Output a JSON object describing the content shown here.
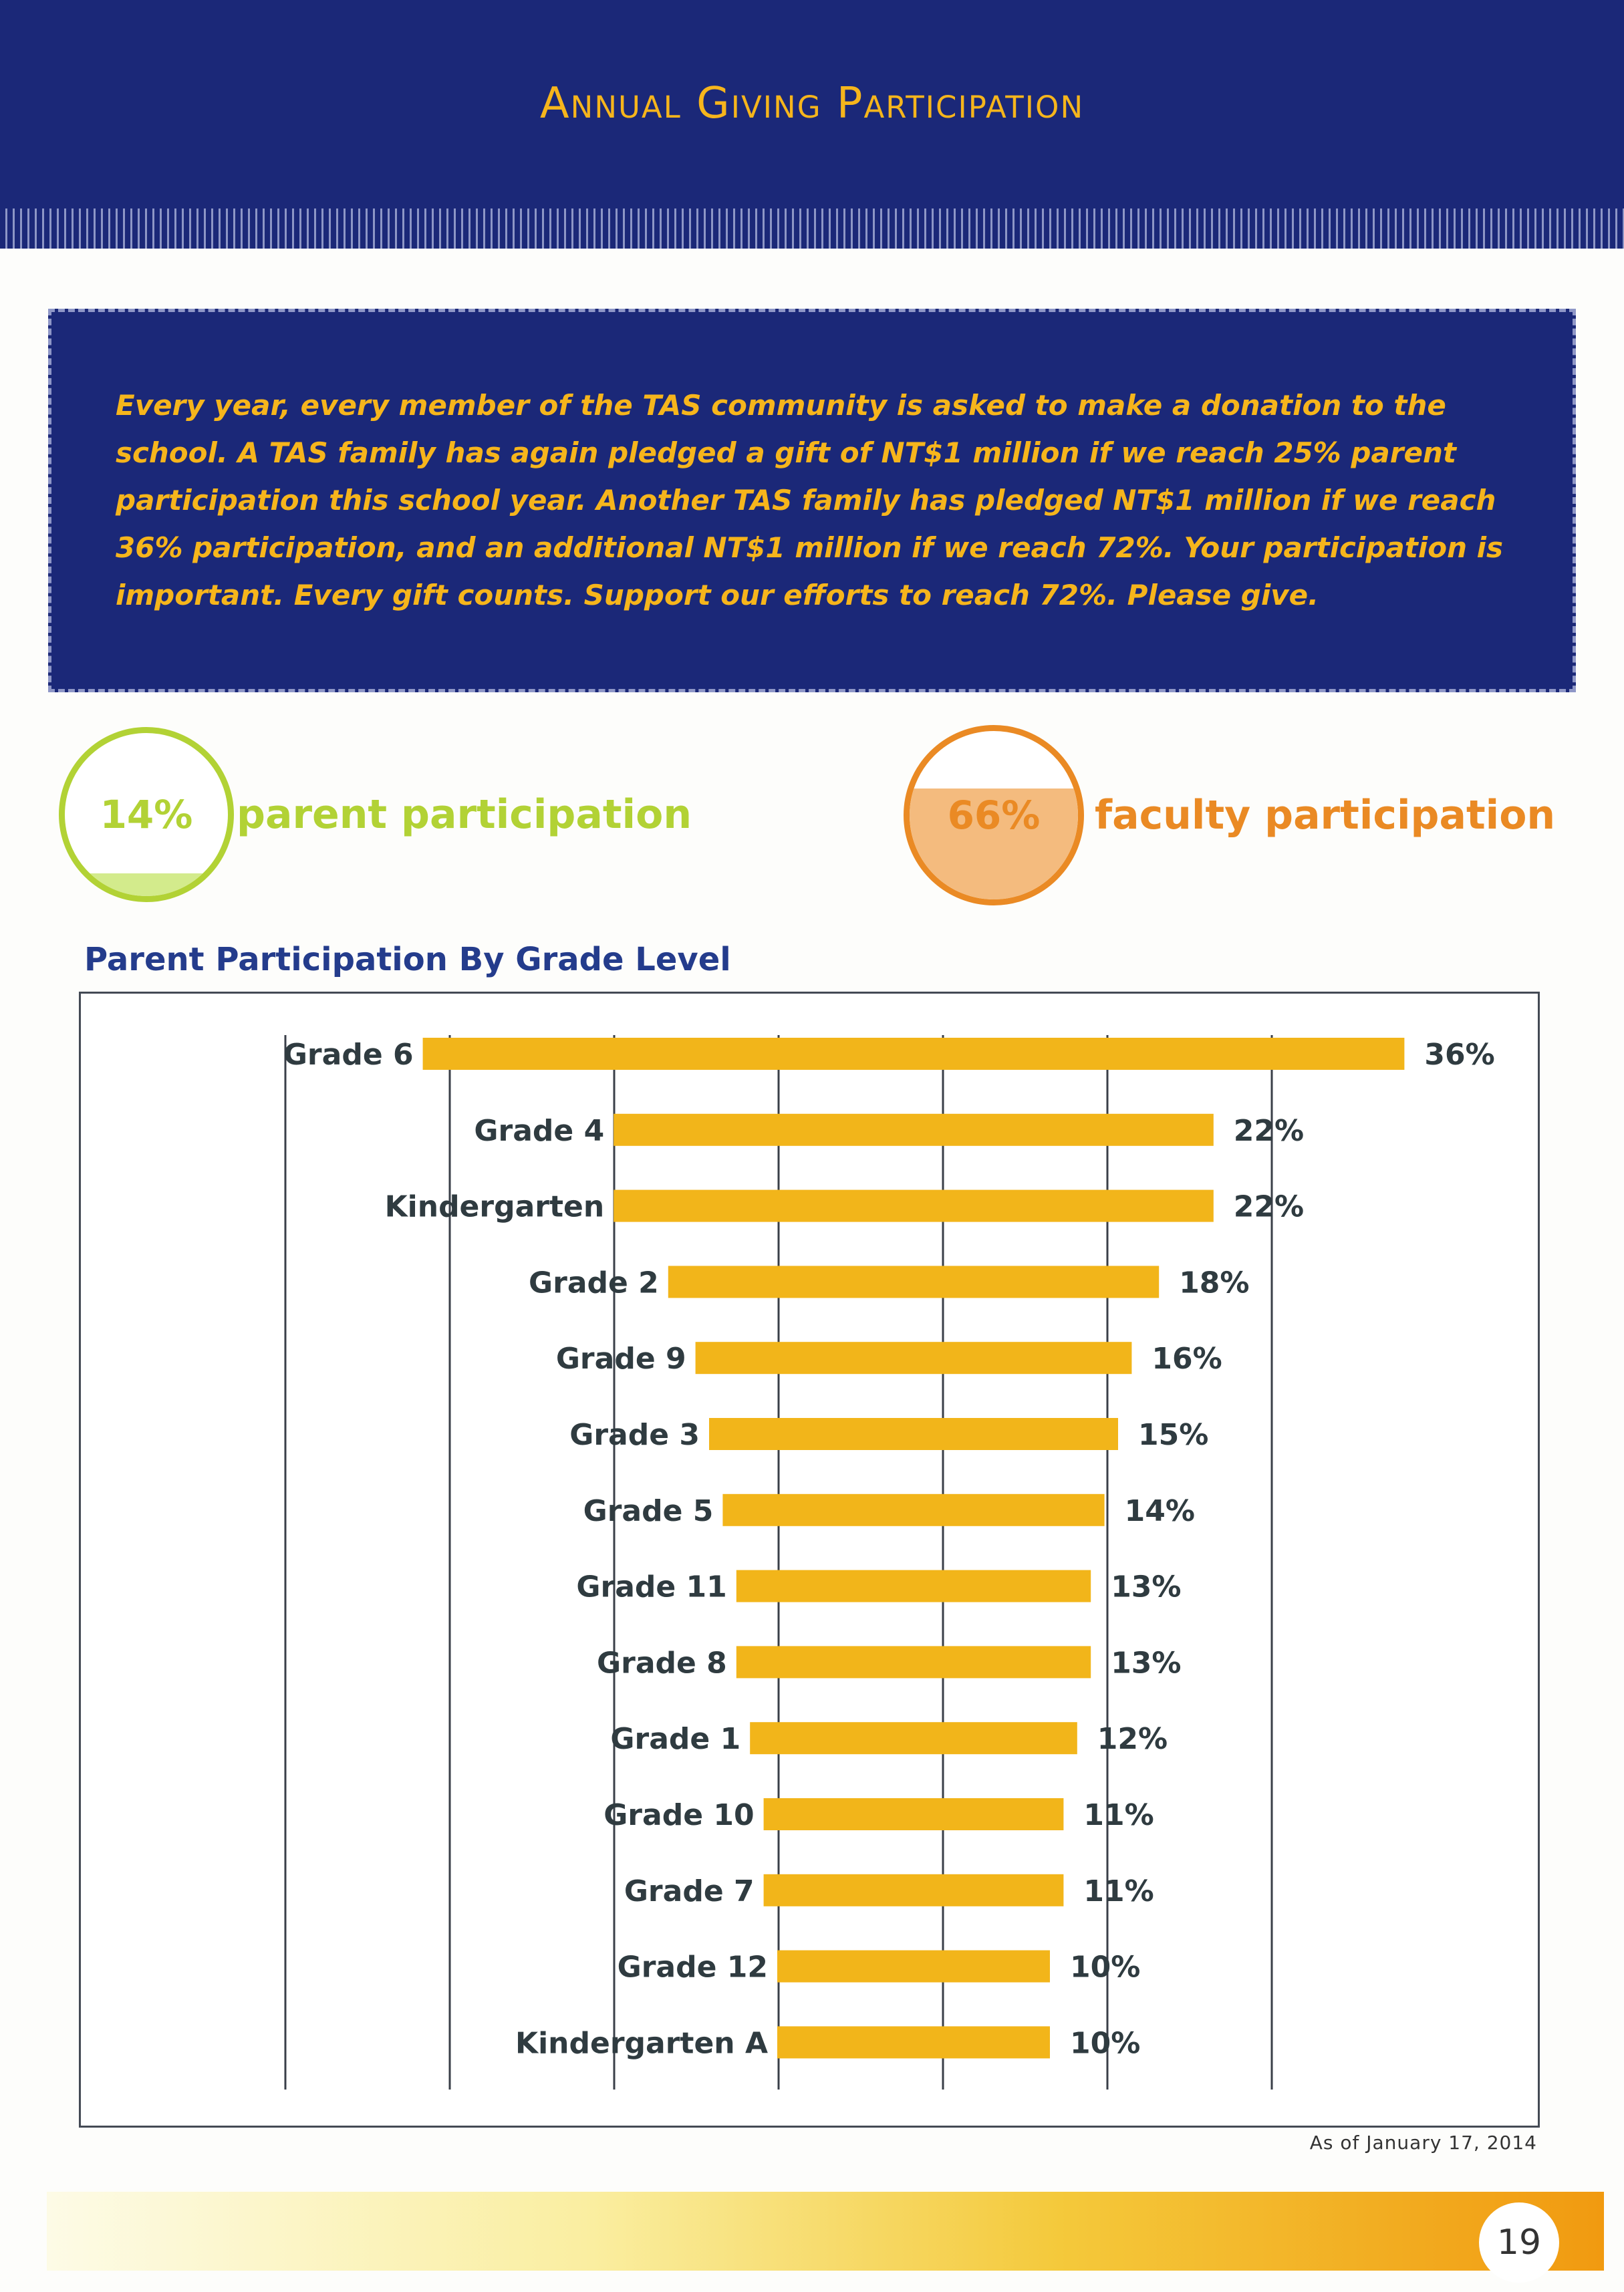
{
  "header": {
    "title": "Annual Giving Participation"
  },
  "intro": {
    "text": "Every year, every member of the TAS community is asked to make a donation to the school. A TAS family has again pledged a gift of NT$1 million if we reach 25% parent participation this school year. Another TAS family has pledged NT$1 million if we reach 36% participation, and an additional NT$1 million if we reach 72%. Your participation is important. Every gift counts. Support our efforts to reach 72%. Please give."
  },
  "stats": {
    "parent": {
      "value": 14,
      "pct_label": "14%",
      "label": "parent participation",
      "color": "#b2d235",
      "fill_color": "#d3eb8c"
    },
    "faculty": {
      "value": 66,
      "pct_label": "66%",
      "label": "faculty participation",
      "color": "#ea8a24",
      "fill_color": "#f4bb7e"
    }
  },
  "chart_title": "Parent Participation By Grade Level",
  "chart_data": {
    "type": "bar",
    "orientation": "horizontal",
    "title": "Parent Participation By Grade Level",
    "categories": [
      "Grade 6",
      "Grade 4",
      "Kindergarten",
      "Grade 2",
      "Grade 9",
      "Grade 3",
      "Grade 5",
      "Grade 11",
      "Grade 8",
      "Grade 1",
      "Grade 10",
      "Grade 7",
      "Grade 12",
      "Kindergarten A"
    ],
    "values": [
      36,
      22,
      22,
      18,
      16,
      15,
      14,
      13,
      13,
      12,
      11,
      11,
      10,
      10
    ],
    "value_labels": [
      "36%",
      "22%",
      "22%",
      "18%",
      "16%",
      "15%",
      "14%",
      "13%",
      "13%",
      "12%",
      "11%",
      "11%",
      "10%",
      "10%"
    ],
    "bar_color": "#f2b51a",
    "grid": true,
    "xlim": [
      0,
      36
    ]
  },
  "note": "As of January 17, 2014",
  "page_number": "19"
}
